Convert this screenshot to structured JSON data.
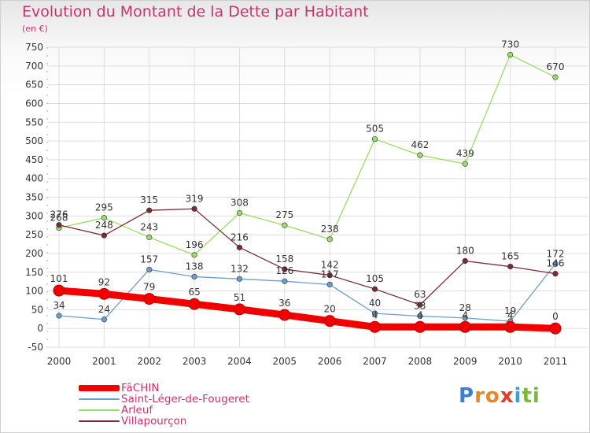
{
  "title": "Evolution du Montant de la Dette par Habitant",
  "subtitle": "(en €)",
  "logo": {
    "text": "Proxiti",
    "letters": [
      {
        "ch": "P",
        "color": "#3a7fd0"
      },
      {
        "ch": "r",
        "color": "#e6872a"
      },
      {
        "ch": "o",
        "color": "#e6872a"
      },
      {
        "ch": "x",
        "color": "#e23c2a"
      },
      {
        "ch": "i",
        "color": "#3a9fd6"
      },
      {
        "ch": "t",
        "color": "#7ab83a"
      },
      {
        "ch": "i",
        "color": "#7ab83a"
      }
    ]
  },
  "chart_data": {
    "type": "line",
    "title": "Evolution du Montant de la Dette par Habitant",
    "subtitle": "(en €)",
    "x": [
      "2000",
      "2001",
      "2002",
      "2003",
      "2004",
      "2005",
      "2006",
      "2007",
      "2008",
      "2009",
      "2010",
      "2011"
    ],
    "ylim": [
      -50,
      750
    ],
    "yticks": [
      "-50",
      "0",
      "50",
      "100",
      "150",
      "200",
      "250",
      "300",
      "350",
      "400",
      "450",
      "500",
      "550",
      "600",
      "650",
      "700",
      "750"
    ],
    "grid": true,
    "legend_position": "bottom-left",
    "series": [
      {
        "name": "FâCHIN",
        "color": "#f20000",
        "values": [
          101,
          92,
          79,
          65,
          51,
          36,
          20,
          4,
          4,
          4,
          4,
          0
        ],
        "labels": [
          "101",
          "92",
          "79",
          "65",
          "51",
          "36",
          "20",
          "4",
          "4",
          "4",
          "4",
          "0"
        ]
      },
      {
        "name": "Saint-Léger-de-Fougeret",
        "color": "#6a9ecb",
        "values": [
          34,
          24,
          157,
          138,
          132,
          126,
          117,
          40,
          33,
          28,
          19,
          172
        ],
        "labels": [
          "34",
          "24",
          "157",
          "138",
          "132",
          "126",
          "117",
          "40",
          "33",
          "28",
          "19",
          "172"
        ]
      },
      {
        "name": "Arleuf",
        "color": "#99dd66",
        "values": [
          268,
          295,
          243,
          196,
          308,
          275,
          238,
          505,
          462,
          439,
          730,
          670
        ],
        "labels": [
          "268",
          "295",
          "243",
          "196",
          "308",
          "275",
          "238",
          "505",
          "462",
          "439",
          "730",
          "670"
        ]
      },
      {
        "name": "Villapourçon",
        "color": "#7a2b36",
        "values": [
          276,
          248,
          315,
          319,
          216,
          158,
          142,
          105,
          63,
          180,
          165,
          146
        ],
        "labels": [
          "276",
          "248",
          "315",
          "319",
          "216",
          "158",
          "142",
          "105",
          "63",
          "180",
          "165",
          "146"
        ]
      }
    ]
  }
}
